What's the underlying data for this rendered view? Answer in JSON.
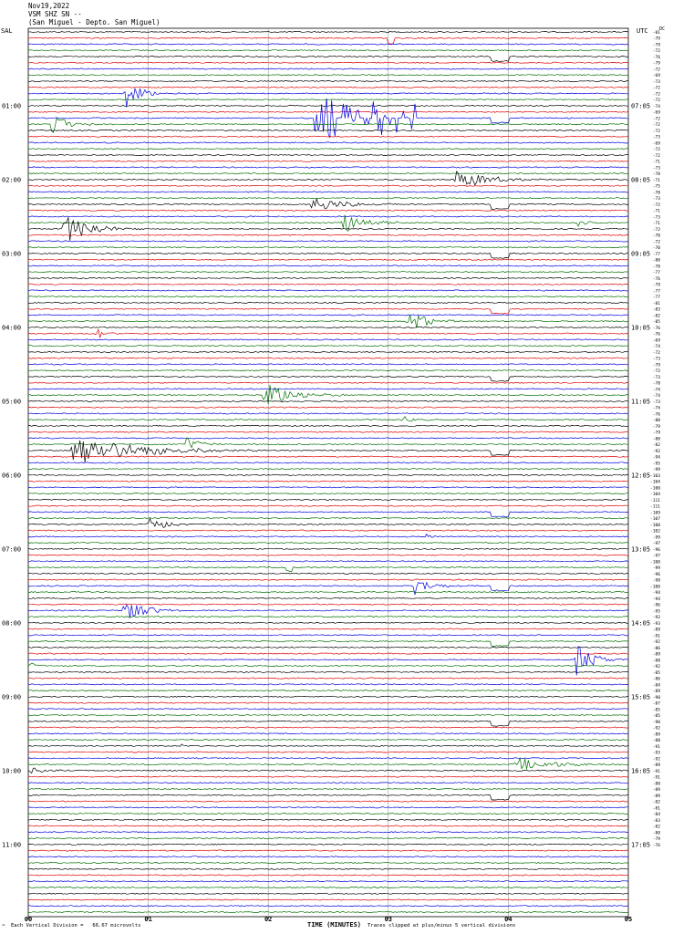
{
  "header": {
    "date": "Nov19,2022",
    "channel": "VSM SHZ SN --",
    "location": "(San Miguel - Depto. San Miguel)"
  },
  "left_station": "SAL",
  "right_zone": "UTC",
  "dc_label": "DC",
  "footer": {
    "legend": "Each Vertical Division =   66.67 microvolts",
    "clip_note": "Traces clipped at plus/minus 5 vertical divisions"
  },
  "colors": {
    "trace_cycle": [
      "#000000",
      "#e00000",
      "#0000e0",
      "#007000"
    ],
    "grid": "#9a9a9a"
  },
  "chart_data": {
    "type": "helicorder",
    "title": "Nov19,2022",
    "xlabel": "TIME (MINUTES)",
    "x_ticks": [
      "00",
      "01",
      "02",
      "03",
      "04",
      "05"
    ],
    "minutes_per_line": 5,
    "line_count": 144,
    "left_hour_labels": [
      "01:00",
      "02:00",
      "03:00",
      "04:00",
      "05:00",
      "06:00",
      "07:00",
      "08:00",
      "09:00",
      "10:00",
      "11:00"
    ],
    "right_hour_labels": [
      "07:05",
      "08:05",
      "09:05",
      "10:05",
      "11:05",
      "12:05",
      "13:05",
      "14:05",
      "15:05",
      "16:05",
      "17:05"
    ],
    "dc_offsets": [
      -81,
      -79,
      -79,
      -72,
      -76,
      -79,
      -72,
      -69,
      -73,
      -72,
      -72,
      -72,
      -74,
      -69,
      -72,
      -72,
      -72,
      -73,
      -69,
      -72,
      -72,
      -71,
      -73,
      -78,
      -71,
      -75,
      -70,
      -73,
      -72,
      -71,
      -73,
      -71,
      -72,
      -70,
      -72,
      -70,
      -77,
      -80,
      -78,
      -77,
      -76,
      -79,
      -77,
      -77,
      -81,
      -83,
      -82,
      -85,
      -76,
      -76,
      -69,
      -74,
      -72,
      -73,
      -79,
      -72,
      -73,
      -78,
      -74,
      -74,
      -73,
      -74,
      -76,
      -80,
      -79,
      -79,
      -80,
      -82,
      -92,
      -94,
      -95,
      -99,
      -103,
      -104,
      -100,
      -104,
      -111,
      -111,
      -109,
      -107,
      -100,
      -102,
      -99,
      -97,
      -96,
      -97,
      -100,
      -99,
      -96,
      -98,
      -100,
      -94,
      -94,
      -96,
      -95,
      -92,
      -93,
      -89,
      -91,
      -92,
      -86,
      -89,
      -88,
      -92,
      -85,
      -86,
      -84,
      -89,
      -90,
      -87,
      -85,
      -85,
      -90,
      -92,
      -89,
      -88,
      -91,
      -93,
      -92,
      -89,
      -91,
      -91,
      -88,
      -89,
      -89,
      -82,
      -81,
      -84,
      -83,
      -82,
      -80,
      -79,
      -76
    ],
    "events": [
      {
        "line": 1,
        "minute": 3.0,
        "duration": 0.05,
        "amp": 6,
        "kind": "step"
      },
      {
        "line": 2,
        "minute": 0.1,
        "duration": 0.06,
        "amp": 6
      },
      {
        "line": 4,
        "minute": 3.85,
        "duration": 0.15,
        "amp": 5,
        "kind": "step"
      },
      {
        "line": 10,
        "minute": 0.8,
        "duration": 0.35,
        "amp": 20
      },
      {
        "line": 14,
        "minute": 2.38,
        "duration": 0.18,
        "amp": 22,
        "kind": "block"
      },
      {
        "line": 14,
        "minute": 2.58,
        "duration": 0.75,
        "amp": 18,
        "kind": "sparse"
      },
      {
        "line": 14,
        "minute": 3.85,
        "duration": 0.15,
        "amp": 5,
        "kind": "step"
      },
      {
        "line": 15,
        "minute": 0.18,
        "duration": 0.45,
        "amp": 12
      },
      {
        "line": 24,
        "minute": 3.55,
        "duration": 0.75,
        "amp": 12
      },
      {
        "line": 28,
        "minute": 2.35,
        "duration": 0.7,
        "amp": 10
      },
      {
        "line": 28,
        "minute": 3.85,
        "duration": 0.15,
        "amp": 5,
        "kind": "step"
      },
      {
        "line": 31,
        "minute": 2.6,
        "duration": 0.55,
        "amp": 14
      },
      {
        "line": 31,
        "minute": 4.55,
        "duration": 0.25,
        "amp": 6
      },
      {
        "line": 32,
        "minute": 0.28,
        "duration": 0.7,
        "amp": 18
      },
      {
        "line": 36,
        "minute": 3.85,
        "duration": 0.15,
        "amp": 5,
        "kind": "step"
      },
      {
        "line": 45,
        "minute": 3.85,
        "duration": 0.15,
        "amp": 5,
        "kind": "step"
      },
      {
        "line": 47,
        "minute": 3.15,
        "duration": 0.45,
        "amp": 14
      },
      {
        "line": 49,
        "minute": 0.55,
        "duration": 0.2,
        "amp": 12
      },
      {
        "line": 56,
        "minute": 3.85,
        "duration": 0.15,
        "amp": 5,
        "kind": "step"
      },
      {
        "line": 59,
        "minute": 1.95,
        "duration": 0.7,
        "amp": 16
      },
      {
        "line": 63,
        "minute": 3.1,
        "duration": 0.3,
        "amp": 5
      },
      {
        "line": 67,
        "minute": 1.3,
        "duration": 0.35,
        "amp": 10
      },
      {
        "line": 68,
        "minute": 0.35,
        "duration": 1.6,
        "amp": 18
      },
      {
        "line": 68,
        "minute": 3.85,
        "duration": 0.15,
        "amp": 5,
        "kind": "step"
      },
      {
        "line": 78,
        "minute": 3.85,
        "duration": 0.15,
        "amp": 5,
        "kind": "step"
      },
      {
        "line": 80,
        "minute": 0.98,
        "duration": 0.4,
        "amp": 14
      },
      {
        "line": 82,
        "minute": 3.3,
        "duration": 0.2,
        "amp": 4
      },
      {
        "line": 87,
        "minute": 2.15,
        "duration": 0.05,
        "amp": 4,
        "kind": "step"
      },
      {
        "line": 90,
        "minute": 3.2,
        "duration": 0.4,
        "amp": 12
      },
      {
        "line": 90,
        "minute": 3.85,
        "duration": 0.15,
        "amp": 5,
        "kind": "step"
      },
      {
        "line": 94,
        "minute": 0.78,
        "duration": 0.55,
        "amp": 14
      },
      {
        "line": 99,
        "minute": 3.85,
        "duration": 0.15,
        "amp": 5,
        "kind": "step"
      },
      {
        "line": 102,
        "minute": 4.55,
        "duration": 0.45,
        "amp": 20
      },
      {
        "line": 103,
        "minute": 0.0,
        "duration": 0.2,
        "amp": 5
      },
      {
        "line": 112,
        "minute": 3.85,
        "duration": 0.15,
        "amp": 5,
        "kind": "step"
      },
      {
        "line": 116,
        "minute": 1.25,
        "duration": 0.12,
        "amp": 4
      },
      {
        "line": 119,
        "minute": 4.05,
        "duration": 0.95,
        "amp": 8
      },
      {
        "line": 120,
        "minute": 0.0,
        "duration": 0.35,
        "amp": 6
      },
      {
        "line": 124,
        "minute": 3.85,
        "duration": 0.15,
        "amp": 5,
        "kind": "step"
      }
    ]
  }
}
